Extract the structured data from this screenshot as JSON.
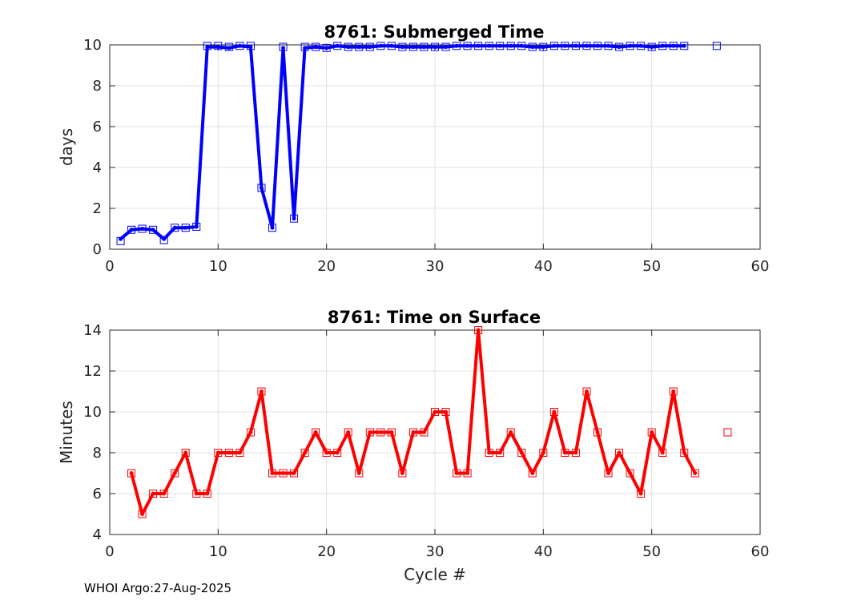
{
  "chart_data": [
    {
      "type": "line",
      "title": "8761: Submerged Time",
      "xlabel": "",
      "ylabel": "days",
      "xlim": [
        0,
        60
      ],
      "ylim": [
        0,
        10
      ],
      "xticks": [
        0,
        10,
        20,
        30,
        40,
        50,
        60
      ],
      "yticks": [
        0,
        2,
        4,
        6,
        8,
        10
      ],
      "grid": true,
      "color": "#0000ff",
      "line": {
        "x": [
          1,
          2,
          3,
          4,
          5,
          6,
          7,
          8,
          9,
          10,
          11,
          12,
          13,
          14,
          15,
          16,
          17,
          18,
          19,
          20,
          21,
          22,
          23,
          24,
          25,
          26,
          27,
          28,
          29,
          30,
          31,
          32,
          33,
          34,
          35,
          36,
          37,
          38,
          39,
          40,
          41,
          42,
          43,
          44,
          45,
          46,
          47,
          48,
          49,
          50,
          51,
          52,
          53
        ],
        "y": [
          0.5,
          0.95,
          1.0,
          0.95,
          0.5,
          1.05,
          1.05,
          1.1,
          9.9,
          9.9,
          9.85,
          9.95,
          9.9,
          3.0,
          1.05,
          9.85,
          1.5,
          9.85,
          9.9,
          9.85,
          9.95,
          9.9,
          9.9,
          9.9,
          9.95,
          9.95,
          9.9,
          9.9,
          9.9,
          9.9,
          9.9,
          9.95,
          9.95,
          9.95,
          9.95,
          9.95,
          9.95,
          9.95,
          9.9,
          9.9,
          9.95,
          9.95,
          9.95,
          9.95,
          9.95,
          9.95,
          9.9,
          9.95,
          9.95,
          9.9,
          9.95,
          9.95,
          9.95
        ]
      },
      "markers": {
        "x": [
          1,
          2,
          3,
          4,
          5,
          6,
          7,
          8,
          9,
          10,
          11,
          12,
          13,
          14,
          15,
          16,
          17,
          18,
          19,
          20,
          21,
          22,
          23,
          24,
          25,
          26,
          27,
          28,
          29,
          30,
          31,
          32,
          33,
          34,
          35,
          36,
          37,
          38,
          39,
          40,
          41,
          42,
          43,
          44,
          45,
          46,
          47,
          48,
          49,
          50,
          51,
          52,
          53,
          56
        ],
        "y": [
          0.4,
          0.95,
          1.0,
          0.95,
          0.45,
          1.05,
          1.05,
          1.1,
          9.95,
          9.95,
          9.9,
          9.95,
          9.95,
          3.0,
          1.05,
          9.9,
          1.5,
          9.9,
          9.9,
          9.85,
          9.95,
          9.9,
          9.9,
          9.9,
          9.95,
          9.95,
          9.9,
          9.9,
          9.9,
          9.9,
          9.9,
          9.95,
          9.95,
          9.95,
          9.95,
          9.95,
          9.95,
          9.95,
          9.9,
          9.9,
          9.95,
          9.95,
          9.95,
          9.95,
          9.95,
          9.95,
          9.9,
          9.95,
          9.95,
          9.9,
          9.95,
          9.95,
          9.95,
          9.95
        ]
      }
    },
    {
      "type": "line",
      "title": "8761: Time on Surface",
      "xlabel": "Cycle #",
      "ylabel": "Minutes",
      "xlim": [
        0,
        60
      ],
      "ylim": [
        4,
        14
      ],
      "xticks": [
        0,
        10,
        20,
        30,
        40,
        50,
        60
      ],
      "yticks": [
        4,
        6,
        8,
        10,
        12,
        14
      ],
      "grid": true,
      "color": "#ff0000",
      "line": {
        "x": [
          2,
          3,
          4,
          5,
          6,
          7,
          8,
          9,
          10,
          11,
          12,
          13,
          14,
          15,
          16,
          17,
          18,
          19,
          20,
          21,
          22,
          23,
          24,
          25,
          26,
          27,
          28,
          29,
          30,
          31,
          32,
          33,
          34,
          35,
          36,
          37,
          38,
          39,
          40,
          41,
          42,
          43,
          44,
          45,
          46,
          47,
          48,
          49,
          50,
          51,
          52,
          53,
          54
        ],
        "y": [
          7,
          5,
          6,
          6,
          7,
          8,
          6,
          6,
          8,
          8,
          8,
          9,
          11,
          7,
          7,
          7,
          8,
          9,
          8,
          8,
          9,
          7,
          9,
          9,
          9,
          7,
          9,
          9,
          10,
          10,
          7,
          7,
          14,
          8,
          8,
          9,
          8,
          7,
          8,
          10,
          8,
          8,
          11,
          9,
          7,
          8,
          7,
          6,
          9,
          8,
          11,
          8,
          7
        ]
      },
      "markers": {
        "x": [
          2,
          3,
          4,
          5,
          6,
          7,
          8,
          9,
          10,
          11,
          12,
          13,
          14,
          15,
          16,
          17,
          18,
          19,
          20,
          21,
          22,
          23,
          24,
          25,
          26,
          27,
          28,
          29,
          30,
          31,
          32,
          33,
          34,
          35,
          36,
          37,
          38,
          39,
          40,
          41,
          42,
          43,
          44,
          45,
          46,
          47,
          48,
          49,
          50,
          51,
          52,
          53,
          54,
          57
        ],
        "y": [
          7,
          5,
          6,
          6,
          7,
          8,
          6,
          6,
          8,
          8,
          8,
          9,
          11,
          7,
          7,
          7,
          8,
          9,
          8,
          8,
          9,
          7,
          9,
          9,
          9,
          7,
          9,
          9,
          10,
          10,
          7,
          7,
          14,
          8,
          8,
          9,
          8,
          7,
          8,
          10,
          8,
          8,
          11,
          9,
          7,
          8,
          7,
          6,
          9,
          8,
          11,
          8,
          7,
          9
        ]
      }
    }
  ],
  "footer": {
    "text": "WHOI Argo:27-Aug-2025"
  }
}
